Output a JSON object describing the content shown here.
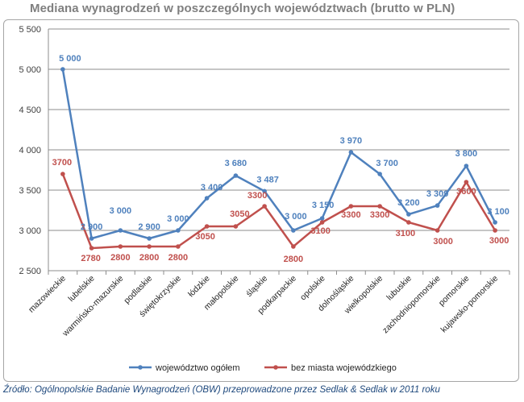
{
  "title": "Mediana wynagrodzeń w poszczególnych województwach (brutto w PLN)",
  "source": "Źródło: Ogólnopolskie Badanie Wynagrodzeń (OBW) przeprowadzone przez Sedlak & Sedlak w 2011 roku",
  "colors": {
    "series1": "#4f81bd",
    "series2": "#c0504d",
    "grid": "#8c8c8c",
    "title": "#7f7f7f"
  },
  "chart_data": {
    "type": "line",
    "title": "Mediana wynagrodzeń w poszczególnych województwach (brutto w PLN)",
    "xlabel": "",
    "ylabel": "",
    "ylim": [
      2500,
      5500
    ],
    "yticks": [
      2500,
      3000,
      3500,
      4000,
      4500,
      5000,
      5500
    ],
    "ytick_labels": [
      "2 500",
      "3 000",
      "3 500",
      "4 000",
      "4 500",
      "5 000",
      "5 500"
    ],
    "grid": true,
    "legend_position": "bottom",
    "categories": [
      "mazowieckie",
      "lubelskie",
      "warmińsko-mazurskie",
      "podlaskie",
      "świętokrzyskie",
      "łódzkie",
      "małopolskie",
      "śląskie",
      "podkarpackie",
      "opolskie",
      "dolnośląskie",
      "wielkopolskie",
      "lubuskie",
      "zachodniopomorskie",
      "pomorskie",
      "kujawsko-pomorskie"
    ],
    "series": [
      {
        "name": "województwo ogółem",
        "values": [
          5000,
          2900,
          3000,
          2900,
          3000,
          3400,
          3680,
          3487,
          3000,
          3150,
          3970,
          3700,
          3200,
          3309,
          3800,
          3100
        ],
        "labels": [
          "5 000",
          "2 900",
          "3 000",
          "2 900",
          "3 000",
          "3 400",
          "3 680",
          "3 487",
          "3 000",
          "3 150",
          "3 970",
          "3 700",
          "3 200",
          "3 309",
          "3 800",
          "3 100"
        ]
      },
      {
        "name": "bez miasta wojewódzkiego",
        "values": [
          3700,
          2780,
          2800,
          2800,
          2800,
          3050,
          3050,
          3300,
          2800,
          3100,
          3300,
          3300,
          3100,
          3000,
          3600,
          3000
        ],
        "labels": [
          "3700",
          "2780",
          "2800",
          "2800",
          "2800",
          "3050",
          "3050",
          "3300",
          "2800",
          "3100",
          "3300",
          "3300",
          "3100",
          "3000",
          "3600",
          "3000"
        ]
      }
    ]
  }
}
